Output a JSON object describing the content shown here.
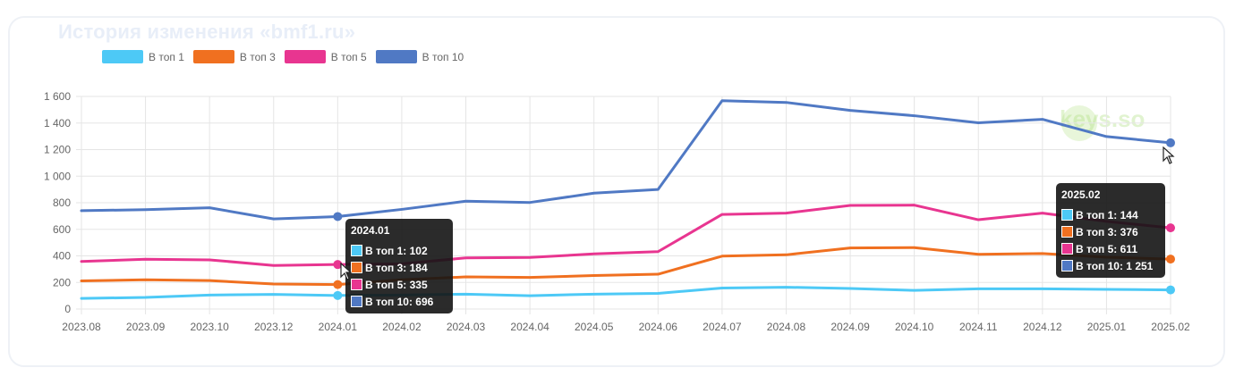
{
  "card": {
    "title": "История изменения «bmf1.ru»"
  },
  "watermark": {
    "text": "keys.so"
  },
  "colors": {
    "top1": "#4dc9f6",
    "top3": "#f07020",
    "top5": "#e83590",
    "top10": "#5079c4",
    "grid": "#e5e5e5",
    "axis_text": "#666666"
  },
  "chart_data": {
    "type": "line",
    "x": [
      "2023.08",
      "2023.09",
      "2023.10",
      "2023.12",
      "2024.01",
      "2024.02",
      "2024.03",
      "2024.04",
      "2024.05",
      "2024.06",
      "2024.07",
      "2024.08",
      "2024.09",
      "2024.10",
      "2024.11",
      "2024.12",
      "2025.01",
      "2025.02"
    ],
    "ylim": [
      0,
      1600
    ],
    "yticks": [
      0,
      200,
      400,
      600,
      800,
      1000,
      1200,
      1400,
      1600
    ],
    "ytick_labels": [
      "0",
      "200",
      "400",
      "600",
      "800",
      "1 000",
      "1 200",
      "1 400",
      "1 600"
    ],
    "grid": true,
    "legend": "top-left",
    "series": [
      {
        "name": "В топ 1",
        "key": "top1",
        "values": [
          80,
          87,
          105,
          110,
          102,
          105,
          112,
          100,
          112,
          118,
          158,
          164,
          155,
          140,
          152,
          152,
          148,
          144
        ]
      },
      {
        "name": "В топ 3",
        "key": "top3",
        "values": [
          212,
          220,
          214,
          188,
          184,
          220,
          242,
          238,
          252,
          262,
          398,
          408,
          460,
          462,
          412,
          418,
          390,
          376
        ]
      },
      {
        "name": "В топ 5",
        "key": "top5",
        "values": [
          358,
          375,
          370,
          328,
          335,
          340,
          385,
          388,
          415,
          432,
          712,
          722,
          780,
          782,
          672,
          722,
          660,
          611
        ]
      },
      {
        "name": "В топ 10",
        "key": "top10",
        "values": [
          740,
          748,
          762,
          678,
          696,
          750,
          812,
          802,
          872,
          900,
          1568,
          1555,
          1495,
          1455,
          1402,
          1428,
          1298,
          1251
        ]
      }
    ],
    "tooltips": [
      {
        "title": "2024.01",
        "rows": [
          "В топ 1: 102",
          "В топ 3: 184",
          "В топ 5: 335",
          "В топ 10: 696"
        ]
      },
      {
        "title": "2025.02",
        "rows": [
          "В топ 1: 144",
          "В топ 3: 376",
          "В топ 5: 611",
          "В топ 10: 1 251"
        ]
      }
    ]
  }
}
